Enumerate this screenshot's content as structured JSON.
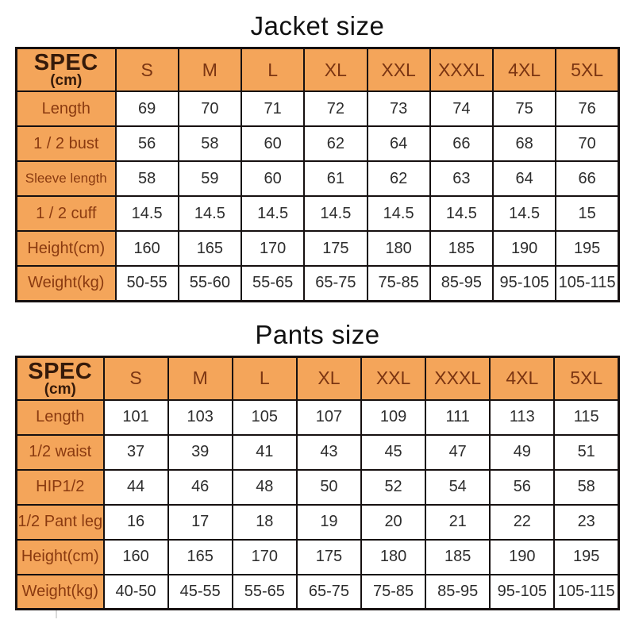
{
  "colors": {
    "orange": "#f4a55a",
    "line": "#161010",
    "title_text": "#111111",
    "spec_text": "#351a0a",
    "size_text": "#7b3512",
    "label_text": "#8a3a10",
    "value_text": "#2d2d2d"
  },
  "chart_data": [
    {
      "type": "table",
      "title": "Jacket size",
      "header": {
        "spec": "SPEC",
        "unit": "(cm)"
      },
      "columns": [
        "S",
        "M",
        "L",
        "XL",
        "XXL",
        "XXXL",
        "4XL",
        "5XL"
      ],
      "rows": [
        {
          "label": "Length",
          "values": [
            "69",
            "70",
            "71",
            "72",
            "73",
            "74",
            "75",
            "76"
          ]
        },
        {
          "label": "1 / 2 bust",
          "values": [
            "56",
            "58",
            "60",
            "62",
            "64",
            "66",
            "68",
            "70"
          ]
        },
        {
          "label": "Sleeve length",
          "values": [
            "58",
            "59",
            "60",
            "61",
            "62",
            "63",
            "64",
            "66"
          ]
        },
        {
          "label": "1 / 2 cuff",
          "values": [
            "14.5",
            "14.5",
            "14.5",
            "14.5",
            "14.5",
            "14.5",
            "14.5",
            "15"
          ]
        },
        {
          "label": "Height(cm)",
          "values": [
            "160",
            "165",
            "170",
            "175",
            "180",
            "185",
            "190",
            "195"
          ]
        },
        {
          "label": "Weight(kg)",
          "values": [
            "50-55",
            "55-60",
            "55-65",
            "65-75",
            "75-85",
            "85-95",
            "95-105",
            "105-115"
          ]
        }
      ]
    },
    {
      "type": "table",
      "title": "Pants size",
      "header": {
        "spec": "SPEC",
        "unit": "(cm)"
      },
      "columns": [
        "S",
        "M",
        "L",
        "XL",
        "XXL",
        "XXXL",
        "4XL",
        "5XL"
      ],
      "rows": [
        {
          "label": "Length",
          "values": [
            "101",
            "103",
            "105",
            "107",
            "109",
            "111",
            "113",
            "115"
          ]
        },
        {
          "label": "1/2 waist",
          "values": [
            "37",
            "39",
            "41",
            "43",
            "45",
            "47",
            "49",
            "51"
          ]
        },
        {
          "label": "HIP1/2",
          "values": [
            "44",
            "46",
            "48",
            "50",
            "52",
            "54",
            "56",
            "58"
          ]
        },
        {
          "label": "1/2 Pant leg",
          "values": [
            "16",
            "17",
            "18",
            "19",
            "20",
            "21",
            "22",
            "23"
          ]
        },
        {
          "label": "Height(cm)",
          "values": [
            "160",
            "165",
            "170",
            "175",
            "180",
            "185",
            "190",
            "195"
          ]
        },
        {
          "label": "Weight(kg)",
          "values": [
            "40-50",
            "45-55",
            "55-65",
            "65-75",
            "75-85",
            "85-95",
            "95-105",
            "105-115"
          ]
        }
      ]
    }
  ]
}
